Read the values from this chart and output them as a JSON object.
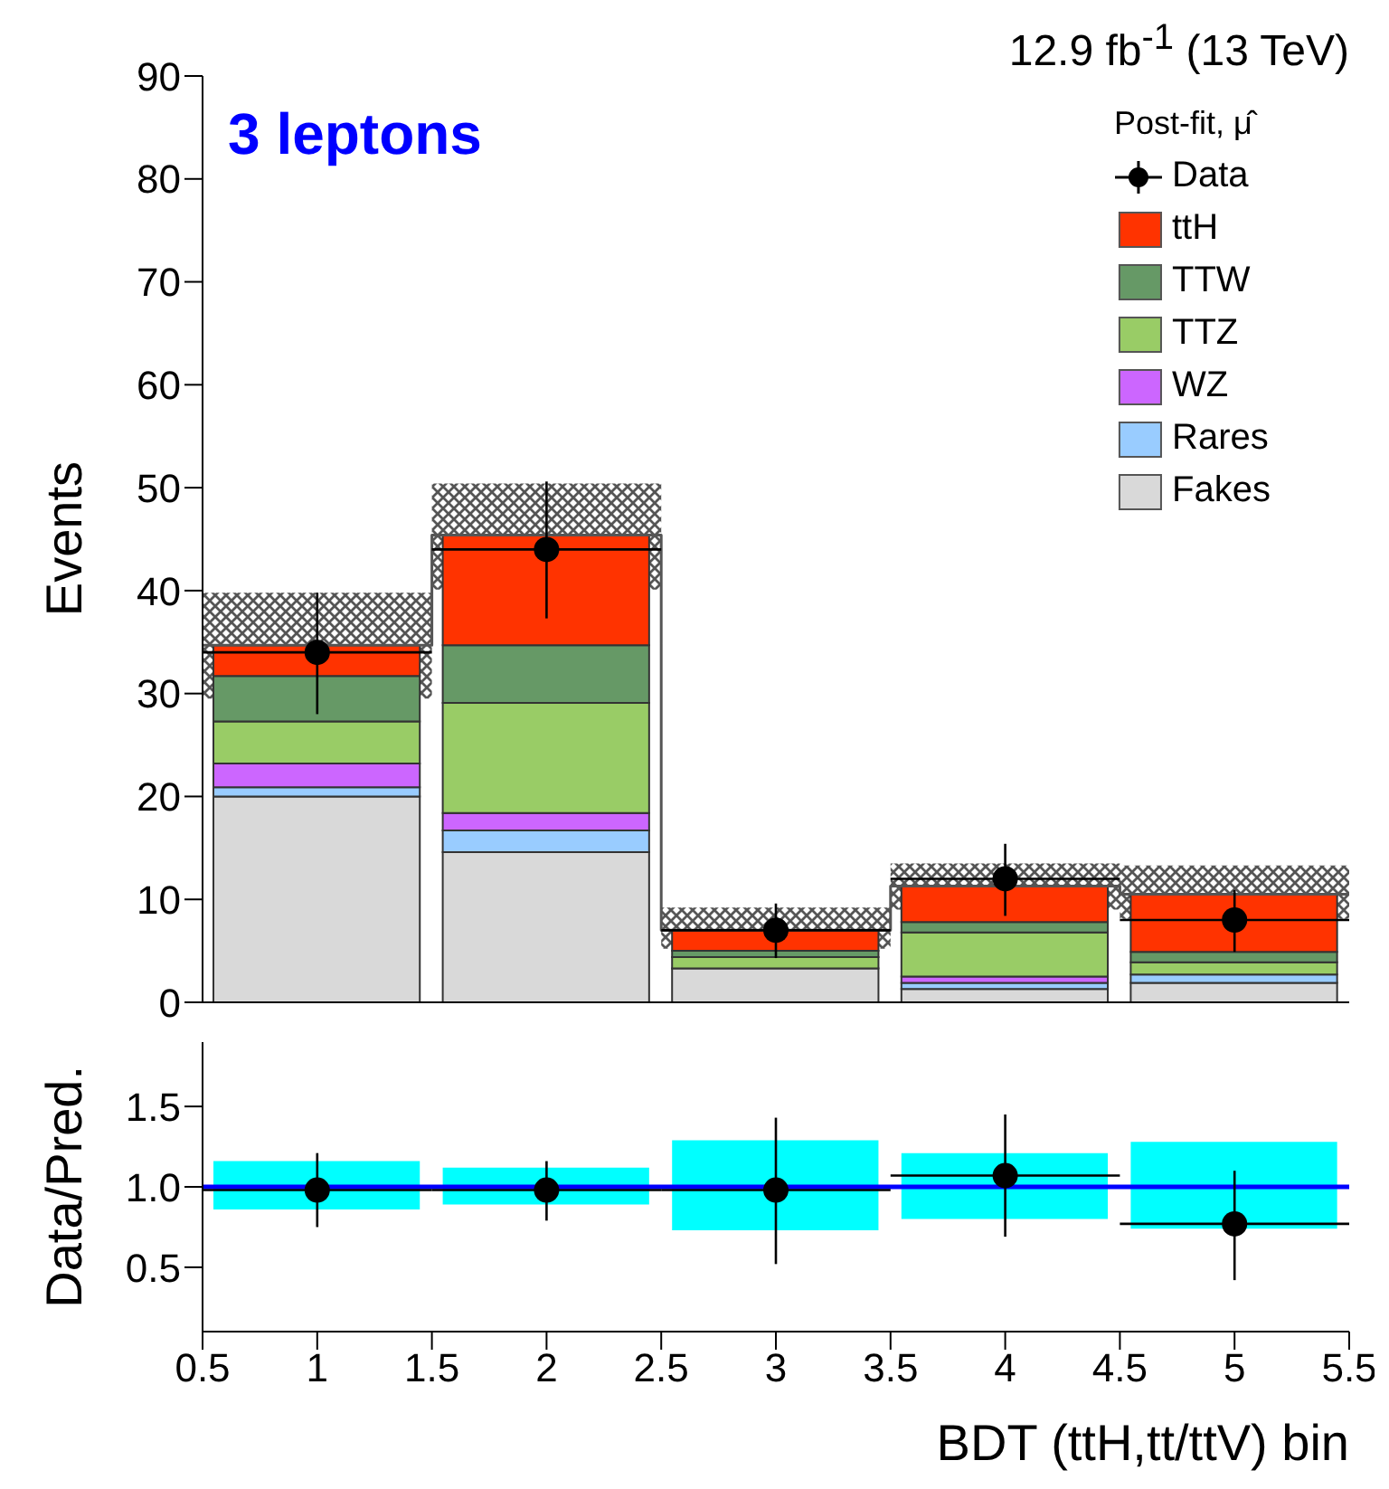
{
  "chart_data": [
    {
      "type": "bar",
      "title": "12.9 fb$^{-1}$ (13 TeV)",
      "ylabel": "Events",
      "stacked": true,
      "legend": "top right",
      "legend_title": "Post-fit, μ̂",
      "annotations": [
        "3 leptons"
      ],
      "x": [
        1,
        2,
        3,
        4,
        5
      ],
      "xlim": [
        0.5,
        5.5
      ],
      "xticks": [
        0.5,
        1,
        1.5,
        2,
        2.5,
        3,
        3.5,
        4,
        4.5,
        5,
        5.5
      ],
      "tick_labels": "y",
      "ylim": [
        0,
        90
      ],
      "yticks": [
        0,
        10,
        20,
        30,
        40,
        50,
        60,
        70,
        80,
        90
      ],
      "series": [
        {
          "name": "Fakes",
          "color": "#d9d9d9",
          "values": [
            20.0,
            14.6,
            3.3,
            1.3,
            1.9
          ]
        },
        {
          "name": "Rares",
          "color": "#99ccff",
          "values": [
            0.9,
            2.1,
            null,
            0.6,
            0.8
          ]
        },
        {
          "name": "WZ",
          "color": "#cc66ff",
          "values": [
            2.3,
            1.7,
            null,
            0.6,
            null
          ]
        },
        {
          "name": "TTZ",
          "color": "#99cc66",
          "values": [
            4.1,
            10.7,
            1.1,
            4.3,
            1.2
          ]
        },
        {
          "name": "TTW",
          "color": "#669966",
          "values": [
            4.4,
            5.6,
            0.6,
            1.0,
            1.0
          ]
        },
        {
          "name": "ttH",
          "color": "#ff3300",
          "values": [
            3.0,
            10.7,
            2.0,
            3.5,
            5.6
          ]
        },
        {
          "type": "step",
          "color": "#555555",
          "x": [
            0.5,
            1.5,
            2.5,
            3.5,
            4.5,
            5.5
          ],
          "values": [
            34.7,
            45.4,
            7.0,
            11.3,
            10.5,
            10.5
          ],
          "lower": [
            29.5,
            40.1,
            5.2,
            9.0,
            8.1,
            8.1
          ],
          "upper": [
            39.8,
            50.4,
            9.2,
            13.5,
            13.3,
            13.3
          ]
        },
        {
          "name": "Data",
          "type": "scatter",
          "color": "#000000",
          "values": [
            34,
            44,
            7,
            12,
            8
          ],
          "errors": [
            [
              28,
              39.8
            ],
            [
              37.3,
              50.6
            ],
            [
              4.3,
              9.6
            ],
            [
              8.4,
              15.4
            ],
            [
              4.9,
              10.9
            ]
          ],
          "xerrors": [
            0.5,
            0.5,
            0.5,
            0.5,
            0.5
          ]
        }
      ]
    },
    {
      "type": "bar",
      "xlabel": "BDT (ttH,tt/ttV) bin",
      "ylabel": "Data/Pred.",
      "legend": false,
      "x": [
        1,
        2,
        3,
        4,
        5
      ],
      "xlim": [
        0.5,
        5.5
      ],
      "xticks": [
        0.5,
        1,
        1.5,
        2,
        2.5,
        3,
        3.5,
        4,
        4.5,
        5,
        5.5
      ],
      "ylim": [
        0.1,
        1.9
      ],
      "yticks": [
        {
          "value": 0.5,
          "label": "0.5"
        },
        {
          "value": 1,
          "label": "1.0"
        },
        {
          "value": 1.5,
          "label": "1.5"
        }
      ],
      "ref_lines": [
        {
          "axis": "y",
          "value": 1,
          "color": "#0000ff"
        }
      ],
      "series": [
        {
          "color": "#00ffff",
          "base": [
            0.86,
            0.89,
            0.73,
            0.8,
            0.74
          ],
          "values": [
            0.3,
            0.23,
            0.56,
            0.41,
            0.54
          ]
        },
        {
          "type": "scatter",
          "color": "#000000",
          "values": [
            0.98,
            0.98,
            0.98,
            1.07,
            0.77
          ],
          "errors": [
            [
              0.75,
              1.21
            ],
            [
              0.79,
              1.16
            ],
            [
              0.52,
              1.43
            ],
            [
              0.69,
              1.45
            ],
            [
              0.42,
              1.1
            ]
          ],
          "xerrors": [
            0.5,
            0.5,
            0.5,
            0.5,
            0.5
          ]
        }
      ]
    }
  ]
}
